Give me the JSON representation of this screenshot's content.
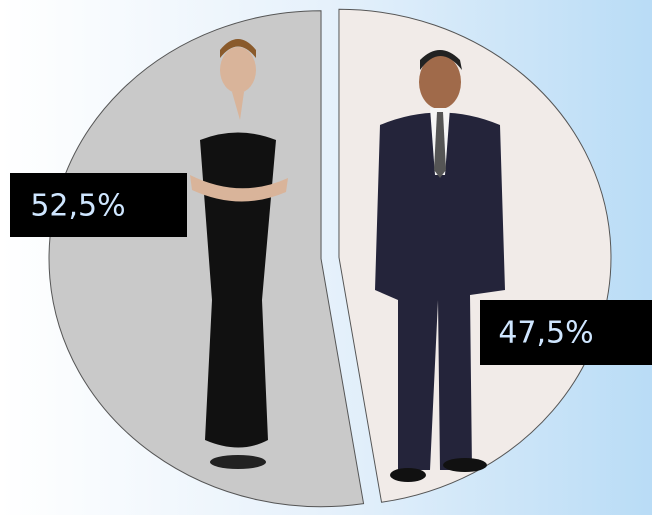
{
  "chart_data": {
    "type": "pie",
    "values": [
      52.5,
      47.5
    ],
    "value_labels": [
      "52,5%",
      "47,5%"
    ],
    "colors": [
      "#c9c9c9",
      "#f1ebe8"
    ]
  }
}
